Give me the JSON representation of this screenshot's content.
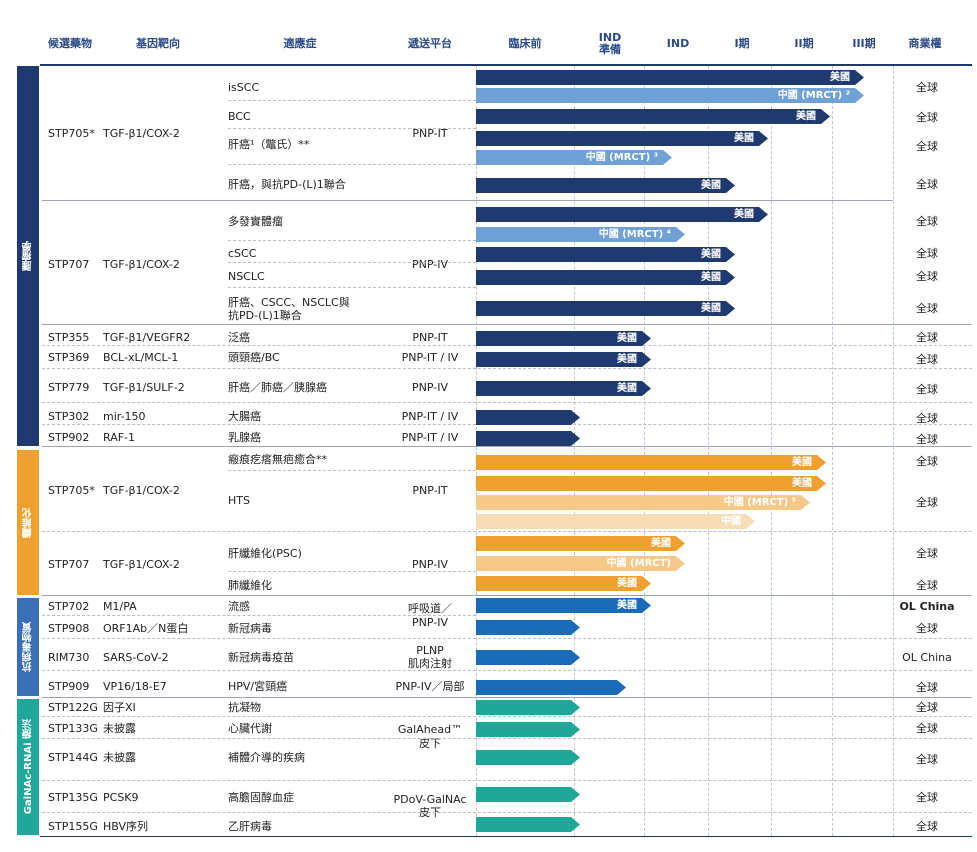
{
  "headers": {
    "drug": "候選藥物",
    "target": "基因靶向",
    "indication": "適應症",
    "platform": "遞送平台",
    "preclinical": "臨床前",
    "ind_prep_1": "IND",
    "ind_prep_2": "準備",
    "ind": "IND",
    "phase1": "I期",
    "phase2": "II期",
    "phase3": "III期",
    "rights": "商業權"
  },
  "categories": [
    {
      "label": "腫瘤學",
      "color": "#1e3a6e"
    },
    {
      "label": "纖維化",
      "color": "#f0a030"
    },
    {
      "label": "抗病毒物質",
      "color": "#3a6fb5"
    },
    {
      "label": "GalNAc-RNAi 療法",
      "color": "#1fa89a"
    }
  ],
  "drugs": [
    {
      "name": "STP705*",
      "target": "TGF-β1/COX-2"
    },
    {
      "name": "STP707",
      "target": "TGF-β1/COX-2"
    },
    {
      "name": "STP355",
      "target": "TGF-β1/VEGFR2"
    },
    {
      "name": "STP369",
      "target": "BCL-xL/MCL-1"
    },
    {
      "name": "STP779",
      "target": "TGF-β1/SULF-2"
    },
    {
      "name": "STP302",
      "target": "mir-150"
    },
    {
      "name": "STP902",
      "target": "RAF-1"
    },
    {
      "name": "STP705*",
      "target": "TGF-β1/COX-2"
    },
    {
      "name": "STP707",
      "target": "TGF-β1/COX-2"
    },
    {
      "name": "STP702",
      "target": "M1/PA"
    },
    {
      "name": "STP908",
      "target": "ORF1Ab／N蛋白"
    },
    {
      "name": "RIM730",
      "target": "SARS-CoV-2"
    },
    {
      "name": "STP909",
      "target": "VP16/18-E7"
    },
    {
      "name": "STP122G",
      "target": "因子XI"
    },
    {
      "name": "STP133G",
      "target": "未披露"
    },
    {
      "name": "STP144G",
      "target": "未披露"
    },
    {
      "name": "STP135G",
      "target": "PCSK9"
    },
    {
      "name": "STP155G",
      "target": "HBV序列"
    }
  ],
  "indications": [
    "isSCC",
    "BCC",
    "肝癌¹（鼈氏）**",
    "肝癌，與抗PD-(L)1聯合",
    "多發實體瘤",
    "cSCC",
    "NSCLC",
    "肝癌、CSCC、NSCLC與",
    "抗PD-(L)1聯合",
    "泛癌",
    "頭頸癌/BC",
    "肝癌／肺癌／胰腺癌",
    "大腸癌",
    "乳腺癌",
    "瘢痕疙瘩無疤癒合**",
    "HTS",
    "肝纖維化(PSC)",
    "肺纖維化",
    "流感",
    "新冠病毒",
    "新冠病毒疫苗",
    "HPV/宮頸癌",
    "抗凝物",
    "心臟代謝",
    "補體介導的疾病",
    "高膽固醇血症",
    "乙肝病毒"
  ],
  "platforms": [
    "PNP-IT",
    "PNP-IV",
    "PNP-IT",
    "PNP-IT / IV",
    "PNP-IV",
    "PNP-IT / IV",
    "PNP-IT / IV",
    "PNP-IT",
    "PNP-IV",
    "呼吸道／",
    "PNP-IV",
    "PLNP",
    "肌肉注射",
    "PNP-IV／局部",
    "GalAhead™",
    "皮下",
    "PDoV-GalNAc",
    "皮下"
  ],
  "rights": [
    "全球",
    "全球",
    "全球",
    "全球",
    "全球",
    "全球",
    "全球",
    "全球",
    "全球",
    "全球",
    "全球",
    "全球",
    "全球",
    "全球",
    "全球",
    "全球",
    "全球",
    "全球",
    "全球",
    "全球",
    "OL China",
    "全球",
    "全球",
    "全球",
    "全球",
    "全球",
    "全球",
    "全球",
    "全球"
  ],
  "bars": [
    {
      "region": "美國",
      "stage": 0.93,
      "color": "#1e3a6e"
    },
    {
      "region": "中國 (MRCT) ²",
      "stage": 0.93,
      "color": "#6fa0d6"
    },
    {
      "region": "美國",
      "stage": 0.85,
      "color": "#1e3a6e"
    },
    {
      "region": "美國",
      "stage": 0.7,
      "color": "#1e3a6e"
    },
    {
      "region": "中國 (MRCT) ³",
      "stage": 0.47,
      "color": "#6fa0d6"
    },
    {
      "region": "美國",
      "stage": 0.62,
      "color": "#1e3a6e"
    },
    {
      "region": "美國",
      "stage": 0.7,
      "color": "#1e3a6e"
    },
    {
      "region": "中國 (MRCT) ⁴",
      "stage": 0.5,
      "color": "#6fa0d6"
    },
    {
      "region": "美國",
      "stage": 0.62,
      "color": "#1e3a6e"
    },
    {
      "region": "美國",
      "stage": 0.62,
      "color": "#1e3a6e"
    },
    {
      "region": "美國",
      "stage": 0.62,
      "color": "#1e3a6e"
    },
    {
      "region": "美國",
      "stage": 0.42,
      "color": "#1e3a6e"
    },
    {
      "region": "美國",
      "stage": 0.42,
      "color": "#1e3a6e"
    },
    {
      "region": "美國",
      "stage": 0.42,
      "color": "#1e3a6e"
    },
    {
      "region": "",
      "stage": 0.25,
      "color": "#1e3a6e"
    },
    {
      "region": "",
      "stage": 0.25,
      "color": "#1e3a6e"
    },
    {
      "region": "美國",
      "stage": 0.84,
      "color": "#f0a030"
    },
    {
      "region": "美國",
      "stage": 0.84,
      "color": "#f0a030"
    },
    {
      "region": "中國 (MRCT) ⁵",
      "stage": 0.8,
      "color": "#f6c98a"
    },
    {
      "region": "中國",
      "stage": 0.67,
      "color": "#f8dcb8"
    },
    {
      "region": "美國",
      "stage": 0.5,
      "color": "#f0a030"
    },
    {
      "region": "中國 (MRCT)",
      "stage": 0.5,
      "color": "#f6c98a"
    },
    {
      "region": "美國",
      "stage": 0.42,
      "color": "#f0a030"
    },
    {
      "region": "美國",
      "stage": 0.42,
      "color": "#1b6cb8"
    },
    {
      "region": "",
      "stage": 0.25,
      "color": "#1b6cb8"
    },
    {
      "region": "",
      "stage": 0.25,
      "color": "#1b6cb8"
    },
    {
      "region": "",
      "stage": 0.36,
      "color": "#1b6cb8"
    },
    {
      "region": "",
      "stage": 0.25,
      "color": "#1fa89a"
    },
    {
      "region": "",
      "stage": 0.25,
      "color": "#1fa89a"
    },
    {
      "region": "",
      "stage": 0.25,
      "color": "#1fa89a"
    },
    {
      "region": "",
      "stage": 0.25,
      "color": "#1fa89a"
    },
    {
      "region": "",
      "stage": 0.25,
      "color": "#1fa89a"
    }
  ]
}
